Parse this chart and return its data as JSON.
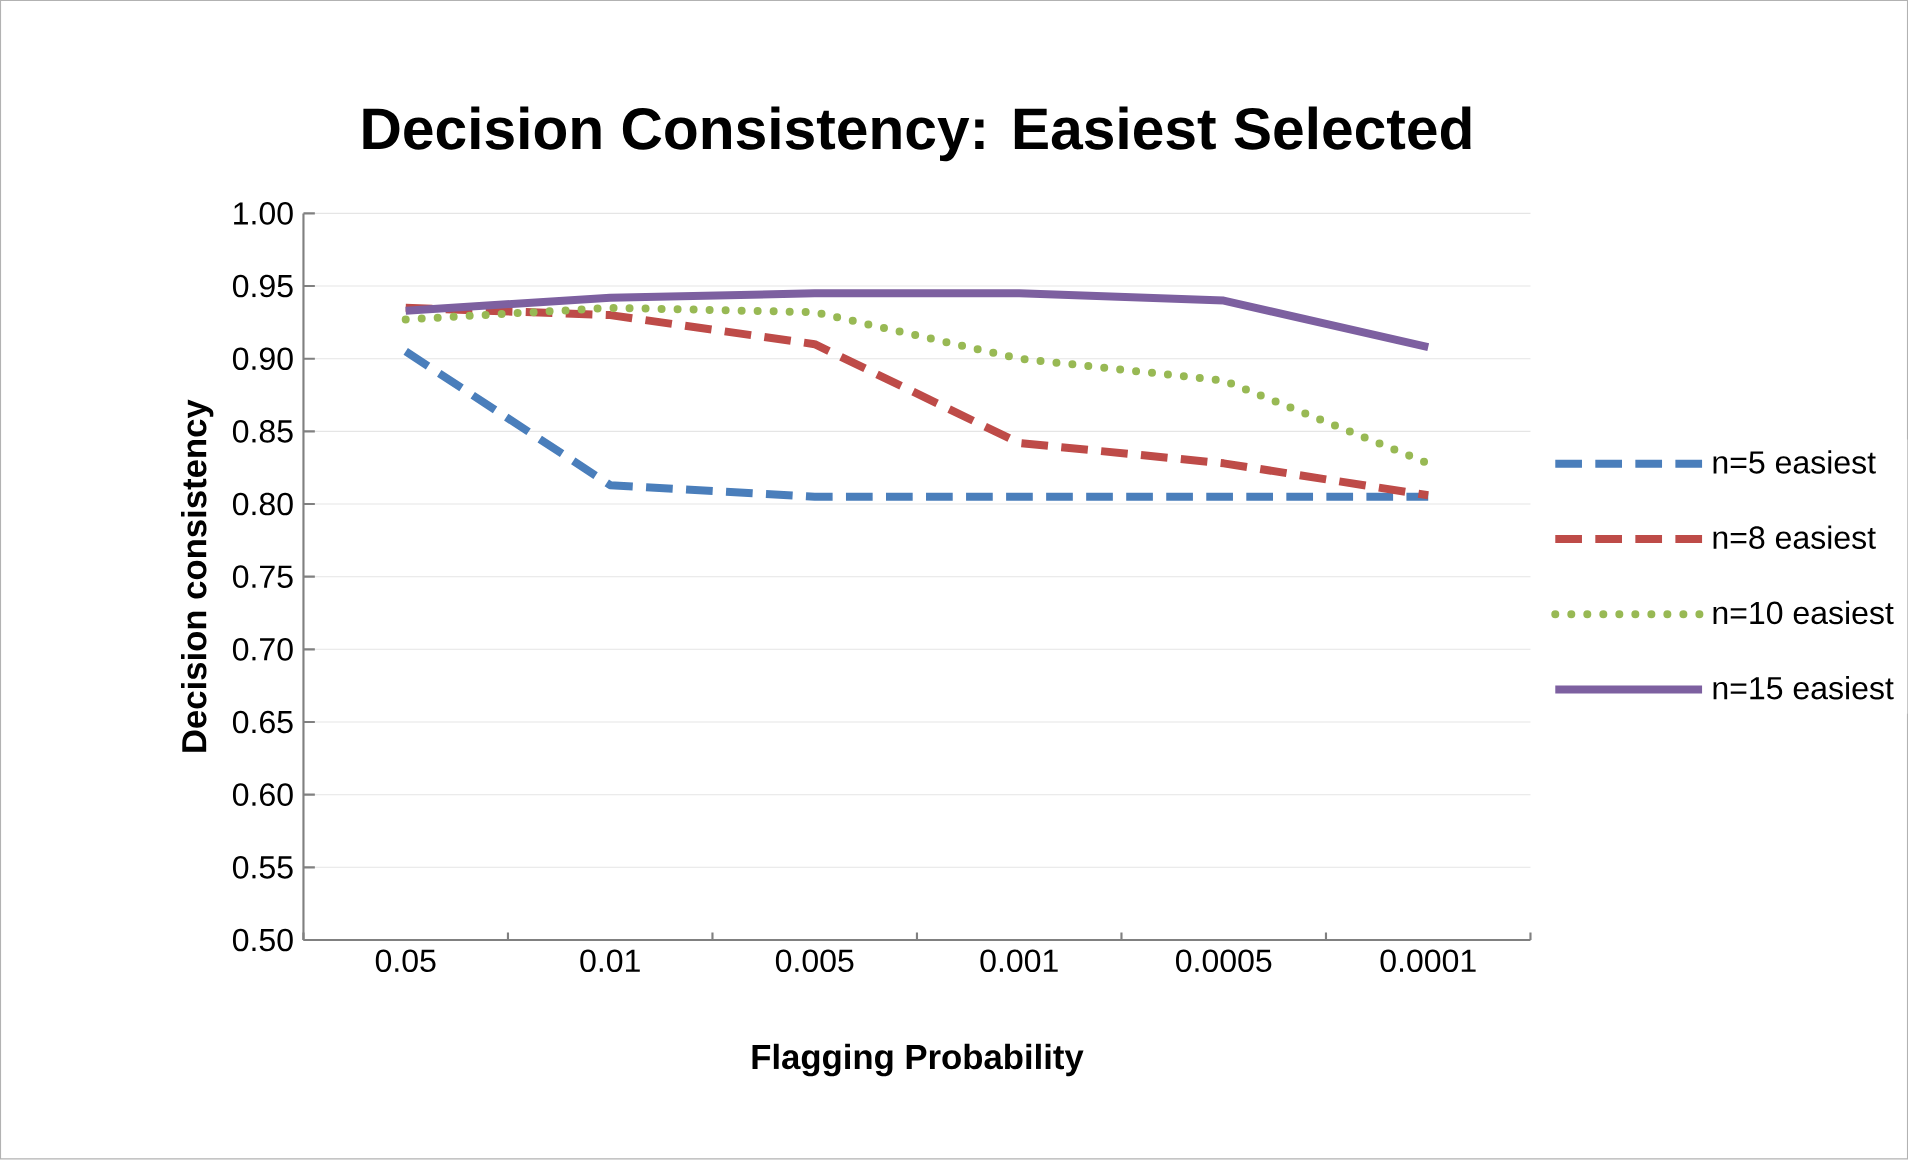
{
  "chart_data": {
    "type": "line",
    "title": "Decision Consistency: Easiest Selected",
    "xlabel": "Flagging Probability",
    "ylabel": "Decision consistency",
    "categories": [
      "0.05",
      "0.01",
      "0.005",
      "0.001",
      "0.0005",
      "0.0001"
    ],
    "series": [
      {
        "name": "n=5 easiest",
        "color": "#4a7ebb",
        "line_style": "dashed",
        "values": [
          0.905,
          0.813,
          0.805,
          0.805,
          0.805,
          0.805
        ]
      },
      {
        "name": "n=8 easiest",
        "color": "#be4b48",
        "line_style": "dashed",
        "values": [
          0.935,
          0.93,
          0.91,
          0.842,
          0.828,
          0.806
        ]
      },
      {
        "name": "n=10 easiest",
        "color": "#98b954",
        "line_style": "dotted",
        "values": [
          0.927,
          0.935,
          0.932,
          0.9,
          0.885,
          0.828
        ]
      },
      {
        "name": "n=15 easiest",
        "color": "#7d60a0",
        "line_style": "solid",
        "values": [
          0.933,
          0.942,
          0.945,
          0.945,
          0.94,
          0.908
        ]
      }
    ],
    "ylim": [
      0.5,
      1.0
    ],
    "yticks": [
      {
        "value": 0.5,
        "label": "0.50"
      },
      {
        "value": 0.55,
        "label": "0.55"
      },
      {
        "value": 0.6,
        "label": "0.60"
      },
      {
        "value": 0.65,
        "label": "0.65"
      },
      {
        "value": 0.7,
        "label": "0.70"
      },
      {
        "value": 0.75,
        "label": "0.75"
      },
      {
        "value": 0.8,
        "label": "0.80"
      },
      {
        "value": 0.85,
        "label": "0.85"
      },
      {
        "value": 0.9,
        "label": "0.90"
      },
      {
        "value": 0.95,
        "label": "0.95"
      },
      {
        "value": 1.0,
        "label": "1.00"
      }
    ],
    "grid": "y",
    "legend": "right"
  }
}
